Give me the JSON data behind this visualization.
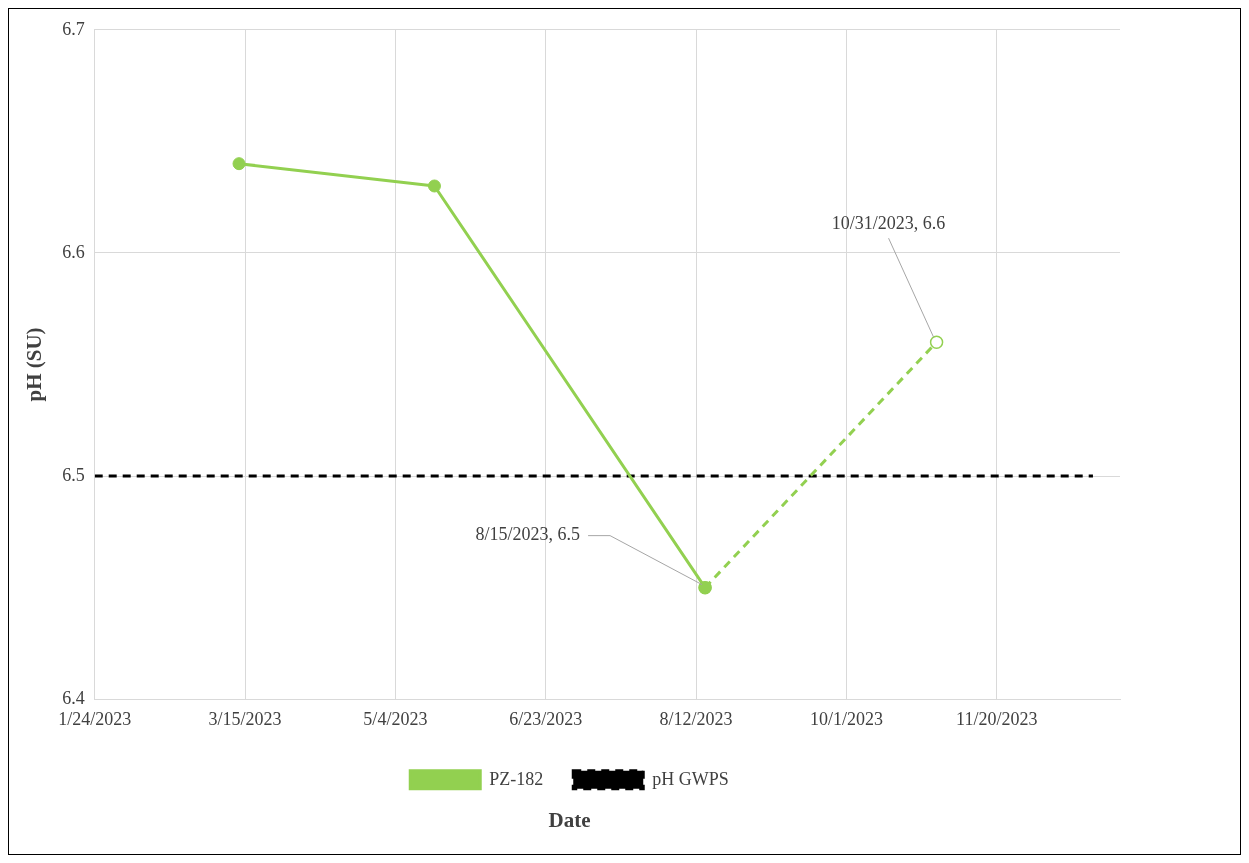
{
  "chart_data": {
    "type": "line",
    "xlabel": "Date",
    "ylabel": "pH (SU)",
    "xlim": [
      "2023-01-24",
      "2023-12-31"
    ],
    "xticks": [
      {
        "value": "2023-01-24",
        "label": "1/24/2023"
      },
      {
        "value": "2023-03-15",
        "label": "3/15/2023"
      },
      {
        "value": "2023-05-04",
        "label": "5/4/2023"
      },
      {
        "value": "2023-06-23",
        "label": "6/23/2023"
      },
      {
        "value": "2023-08-12",
        "label": "8/12/2023"
      },
      {
        "value": "2023-10-01",
        "label": "10/1/2023"
      },
      {
        "value": "2023-11-20",
        "label": "11/20/2023"
      }
    ],
    "ylim": [
      6.4,
      6.7
    ],
    "yticks": [
      6.4,
      6.5,
      6.6,
      6.7
    ],
    "grid": true,
    "legend": "bottom",
    "series": [
      {
        "name": "PZ-182",
        "color": "#92d050",
        "x": [
          "2023-03-13",
          "2023-05-17",
          "2023-08-15"
        ],
        "values": [
          6.64,
          6.63,
          6.45
        ],
        "marker": "circle",
        "line_style": "solid"
      },
      {
        "color": "#92d050",
        "x": [
          "2023-08-15",
          "2023-10-31"
        ],
        "values": [
          6.45,
          6.56
        ],
        "marker": "circle",
        "line_style": "dashed"
      },
      {
        "name": "pH GWPS",
        "color": "#000000",
        "x": [
          "2023-01-24",
          "2023-12-22"
        ],
        "values": [
          6.5,
          6.5
        ],
        "marker": "none",
        "line_style": "dashed"
      }
    ],
    "annotations": [
      {
        "text": "8/15/2023, 6.5",
        "x": "2023-08-15",
        "y": 6.45
      },
      {
        "text": "10/31/2023, 6.6",
        "x": "2023-10-31",
        "y": 6.56
      }
    ]
  }
}
